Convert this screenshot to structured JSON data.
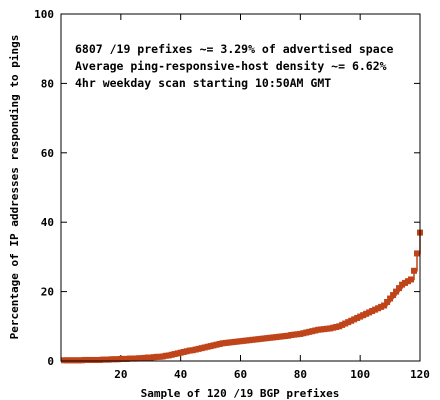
{
  "chart_data": {
    "type": "scatter",
    "title": "",
    "xlabel": "Sample of 120 /19 BGP prefixes",
    "ylabel": "Percentage of IP addresses responding to pings",
    "xlim": [
      0,
      120
    ],
    "ylim": [
      0,
      100
    ],
    "xticks": [
      20,
      40,
      60,
      80,
      100,
      120
    ],
    "yticks": [
      0,
      20,
      40,
      60,
      80,
      100
    ],
    "grid": false,
    "legend": "none",
    "annotations": [
      "6807 /19 prefixes ~= 3.29% of advertised space",
      "Average ping-responsive-host density ~= 6.62%",
      "4hr weekday scan starting 10:50AM GMT"
    ],
    "series": [
      {
        "color": "#c0441a",
        "marker": "square",
        "style": "steps-with-points",
        "x": [
          1,
          2,
          3,
          4,
          5,
          6,
          7,
          8,
          9,
          10,
          11,
          12,
          13,
          14,
          15,
          16,
          17,
          18,
          19,
          20,
          21,
          22,
          23,
          24,
          25,
          26,
          27,
          28,
          29,
          30,
          31,
          32,
          33,
          34,
          35,
          36,
          37,
          38,
          39,
          40,
          41,
          42,
          43,
          44,
          45,
          46,
          47,
          48,
          49,
          50,
          51,
          52,
          53,
          54,
          55,
          56,
          57,
          58,
          59,
          60,
          61,
          62,
          63,
          64,
          65,
          66,
          67,
          68,
          69,
          70,
          71,
          72,
          73,
          74,
          75,
          76,
          77,
          78,
          79,
          80,
          81,
          82,
          83,
          84,
          85,
          86,
          87,
          88,
          89,
          90,
          91,
          92,
          93,
          94,
          95,
          96,
          97,
          98,
          99,
          100,
          101,
          102,
          103,
          104,
          105,
          106,
          107,
          108,
          109,
          110,
          111,
          112,
          113,
          114,
          115,
          116,
          117,
          118,
          119,
          120
        ],
        "values": [
          0.2,
          0.2,
          0.2,
          0.2,
          0.2,
          0.2,
          0.2,
          0.3,
          0.3,
          0.3,
          0.3,
          0.3,
          0.3,
          0.4,
          0.4,
          0.4,
          0.5,
          0.5,
          0.5,
          0.6,
          0.6,
          0.6,
          0.7,
          0.7,
          0.7,
          0.8,
          0.8,
          0.9,
          1.0,
          1.0,
          1.1,
          1.2,
          1.2,
          1.3,
          1.5,
          1.6,
          1.8,
          2.0,
          2.2,
          2.4,
          2.6,
          2.8,
          3.0,
          3.1,
          3.3,
          3.5,
          3.7,
          3.9,
          4.1,
          4.3,
          4.5,
          4.7,
          4.9,
          5.1,
          5.2,
          5.3,
          5.4,
          5.5,
          5.6,
          5.7,
          5.8,
          5.9,
          6.0,
          6.1,
          6.2,
          6.3,
          6.4,
          6.5,
          6.6,
          6.7,
          6.8,
          6.9,
          7.0,
          7.1,
          7.2,
          7.3,
          7.5,
          7.6,
          7.7,
          7.8,
          8.0,
          8.2,
          8.4,
          8.6,
          8.8,
          9.0,
          9.1,
          9.2,
          9.3,
          9.4,
          9.6,
          9.8,
          10.0,
          10.4,
          10.8,
          11.2,
          11.6,
          12.0,
          12.4,
          12.8,
          13.2,
          13.6,
          14.0,
          14.4,
          14.8,
          15.2,
          15.6,
          16.0,
          17.0,
          18.0,
          19.0,
          20.0,
          21.0,
          22.0,
          22.5,
          23.0,
          23.5,
          26.0,
          31.0,
          37.0
        ]
      }
    ]
  }
}
